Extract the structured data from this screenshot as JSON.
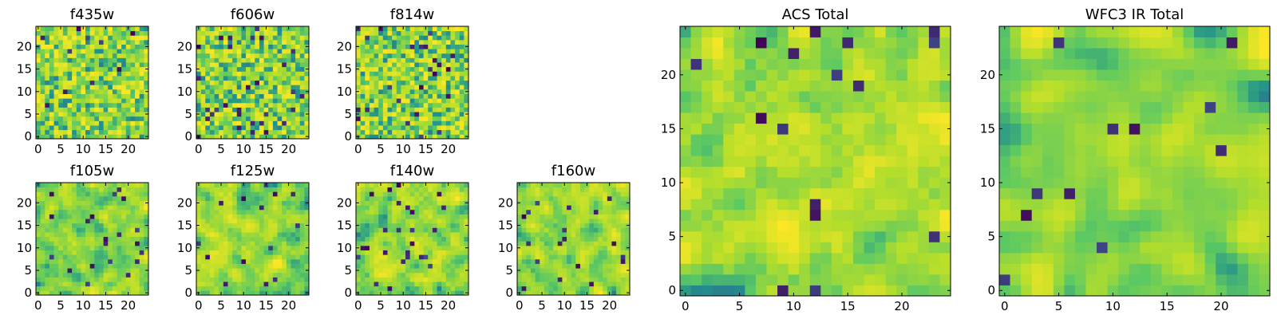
{
  "figure": {
    "description": "Grid of noise image panels for HST filters"
  },
  "colormap": {
    "name": "viridis-like",
    "stops": [
      "#440154",
      "#3b528b",
      "#21908d",
      "#5dc962",
      "#b5de2b",
      "#fde725"
    ]
  },
  "chart_data": [
    {
      "type": "heatmap",
      "title": "f435w",
      "xlim": [
        0,
        25
      ],
      "ylim": [
        0,
        25
      ],
      "xticks": [
        0,
        5,
        10,
        15,
        20
      ],
      "yticks": [
        0,
        5,
        10,
        15,
        20
      ],
      "seed": 11,
      "smooth": 0,
      "dark_fraction": 0.02
    },
    {
      "type": "heatmap",
      "title": "f606w",
      "xlim": [
        0,
        25
      ],
      "ylim": [
        0,
        25
      ],
      "xticks": [
        0,
        5,
        10,
        15,
        20
      ],
      "yticks": [
        0,
        5,
        10,
        15,
        20
      ],
      "seed": 23,
      "smooth": 0,
      "dark_fraction": 0.04
    },
    {
      "type": "heatmap",
      "title": "f814w",
      "xlim": [
        0,
        25
      ],
      "ylim": [
        0,
        25
      ],
      "xticks": [
        0,
        5,
        10,
        15,
        20
      ],
      "yticks": [
        0,
        5,
        10,
        15,
        20
      ],
      "seed": 37,
      "smooth": 0,
      "dark_fraction": 0.04
    },
    {
      "type": "heatmap",
      "title": "f105w",
      "xlim": [
        0,
        25
      ],
      "ylim": [
        0,
        25
      ],
      "xticks": [
        0,
        5,
        10,
        15,
        20
      ],
      "yticks": [
        0,
        5,
        10,
        15,
        20
      ],
      "seed": 41,
      "smooth": 1,
      "dark_fraction": 0.03
    },
    {
      "type": "heatmap",
      "title": "f125w",
      "xlim": [
        0,
        25
      ],
      "ylim": [
        0,
        25
      ],
      "xticks": [
        0,
        5,
        10,
        15,
        20
      ],
      "yticks": [
        0,
        5,
        10,
        15,
        20
      ],
      "seed": 53,
      "smooth": 1,
      "dark_fraction": 0.03
    },
    {
      "type": "heatmap",
      "title": "f140w",
      "xlim": [
        0,
        25
      ],
      "ylim": [
        0,
        25
      ],
      "xticks": [
        0,
        5,
        10,
        15,
        20
      ],
      "yticks": [
        0,
        5,
        10,
        15,
        20
      ],
      "seed": 67,
      "smooth": 1,
      "dark_fraction": 0.03
    },
    {
      "type": "heatmap",
      "title": "f160w",
      "xlim": [
        0,
        25
      ],
      "ylim": [
        0,
        25
      ],
      "xticks": [
        0,
        5,
        10,
        15,
        20
      ],
      "yticks": [
        0,
        5,
        10,
        15,
        20
      ],
      "seed": 79,
      "smooth": 1,
      "dark_fraction": 0.04
    },
    {
      "type": "heatmap",
      "title": "ACS Total",
      "xlim": [
        0,
        25
      ],
      "ylim": [
        0,
        25
      ],
      "xticks": [
        0,
        5,
        10,
        15,
        20
      ],
      "yticks": [
        0,
        5,
        10,
        15,
        20
      ],
      "seed": 97,
      "smooth": 1,
      "dark_fraction": 0.03
    },
    {
      "type": "heatmap",
      "title": "WFC3 IR Total",
      "xlim": [
        0,
        25
      ],
      "ylim": [
        0,
        25
      ],
      "xticks": [
        0,
        5,
        10,
        15,
        20
      ],
      "yticks": [
        0,
        5,
        10,
        15,
        20
      ],
      "seed": 113,
      "smooth": 2,
      "dark_fraction": 0.02
    }
  ]
}
